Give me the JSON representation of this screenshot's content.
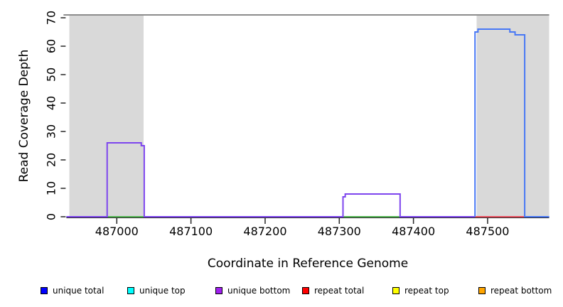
{
  "figure": {
    "background": "#ffffff"
  },
  "x_axis": {
    "title": "Coordinate in Reference Genome",
    "ticks": [
      487000,
      487100,
      487200,
      487300,
      487400,
      487500
    ]
  },
  "y_axis": {
    "title": "Read Coverage Depth",
    "ticks": [
      0,
      10,
      20,
      30,
      40,
      50,
      60,
      70
    ]
  },
  "legend": {
    "items": [
      {
        "label": "unique total",
        "color": "#0000ff"
      },
      {
        "label": "unique top",
        "color": "#00ffff"
      },
      {
        "label": "unique bottom",
        "color": "#a020f0"
      },
      {
        "label": "repeat total",
        "color": "#ff0000"
      },
      {
        "label": "repeat top",
        "color": "#ffff00"
      },
      {
        "label": "repeat bottom",
        "color": "#ffa500"
      }
    ]
  },
  "chart_data": {
    "type": "line",
    "title": "",
    "xlabel": "Coordinate in Reference Genome",
    "ylabel": "Read Coverage Depth",
    "xlim": [
      486932,
      487583
    ],
    "ylim": [
      0,
      71.5
    ],
    "grid": false,
    "cap_line": {
      "y": 71,
      "color": "#8c8c8c"
    },
    "shaded_region_color": "#d9d9d9",
    "shaded_regions": [
      {
        "x_start": 486936,
        "x_end": 487036
      },
      {
        "x_start": 487485,
        "x_end": 487583
      }
    ],
    "axis_color": "#262626",
    "series": [
      {
        "name": "unique top",
        "color": "#55b555",
        "points": [
          [
            486932,
            0
          ],
          [
            487583,
            0
          ]
        ]
      },
      {
        "name": "unique bottom",
        "color": "#7d45ee",
        "points": [
          [
            486932,
            0
          ],
          [
            486987,
            0
          ],
          [
            486987,
            26
          ],
          [
            487033,
            26
          ],
          [
            487033,
            25
          ],
          [
            487037,
            25
          ],
          [
            487037,
            0
          ],
          [
            487305,
            0
          ],
          [
            487305,
            7
          ],
          [
            487308,
            7
          ],
          [
            487308,
            8
          ],
          [
            487382,
            8
          ],
          [
            487382,
            0
          ],
          [
            487583,
            0
          ]
        ]
      },
      {
        "name": "repeat total",
        "color": "#e85060",
        "points": [
          [
            487483,
            0
          ],
          [
            487550,
            0
          ]
        ]
      },
      {
        "name": "unique total",
        "color": "#4878f5",
        "points": [
          [
            487483,
            0
          ],
          [
            487483,
            65
          ],
          [
            487487,
            65
          ],
          [
            487487,
            66
          ],
          [
            487530,
            66
          ],
          [
            487530,
            65
          ],
          [
            487537,
            65
          ],
          [
            487537,
            64
          ],
          [
            487550,
            64
          ],
          [
            487550,
            0
          ],
          [
            487583,
            0
          ]
        ]
      }
    ]
  }
}
